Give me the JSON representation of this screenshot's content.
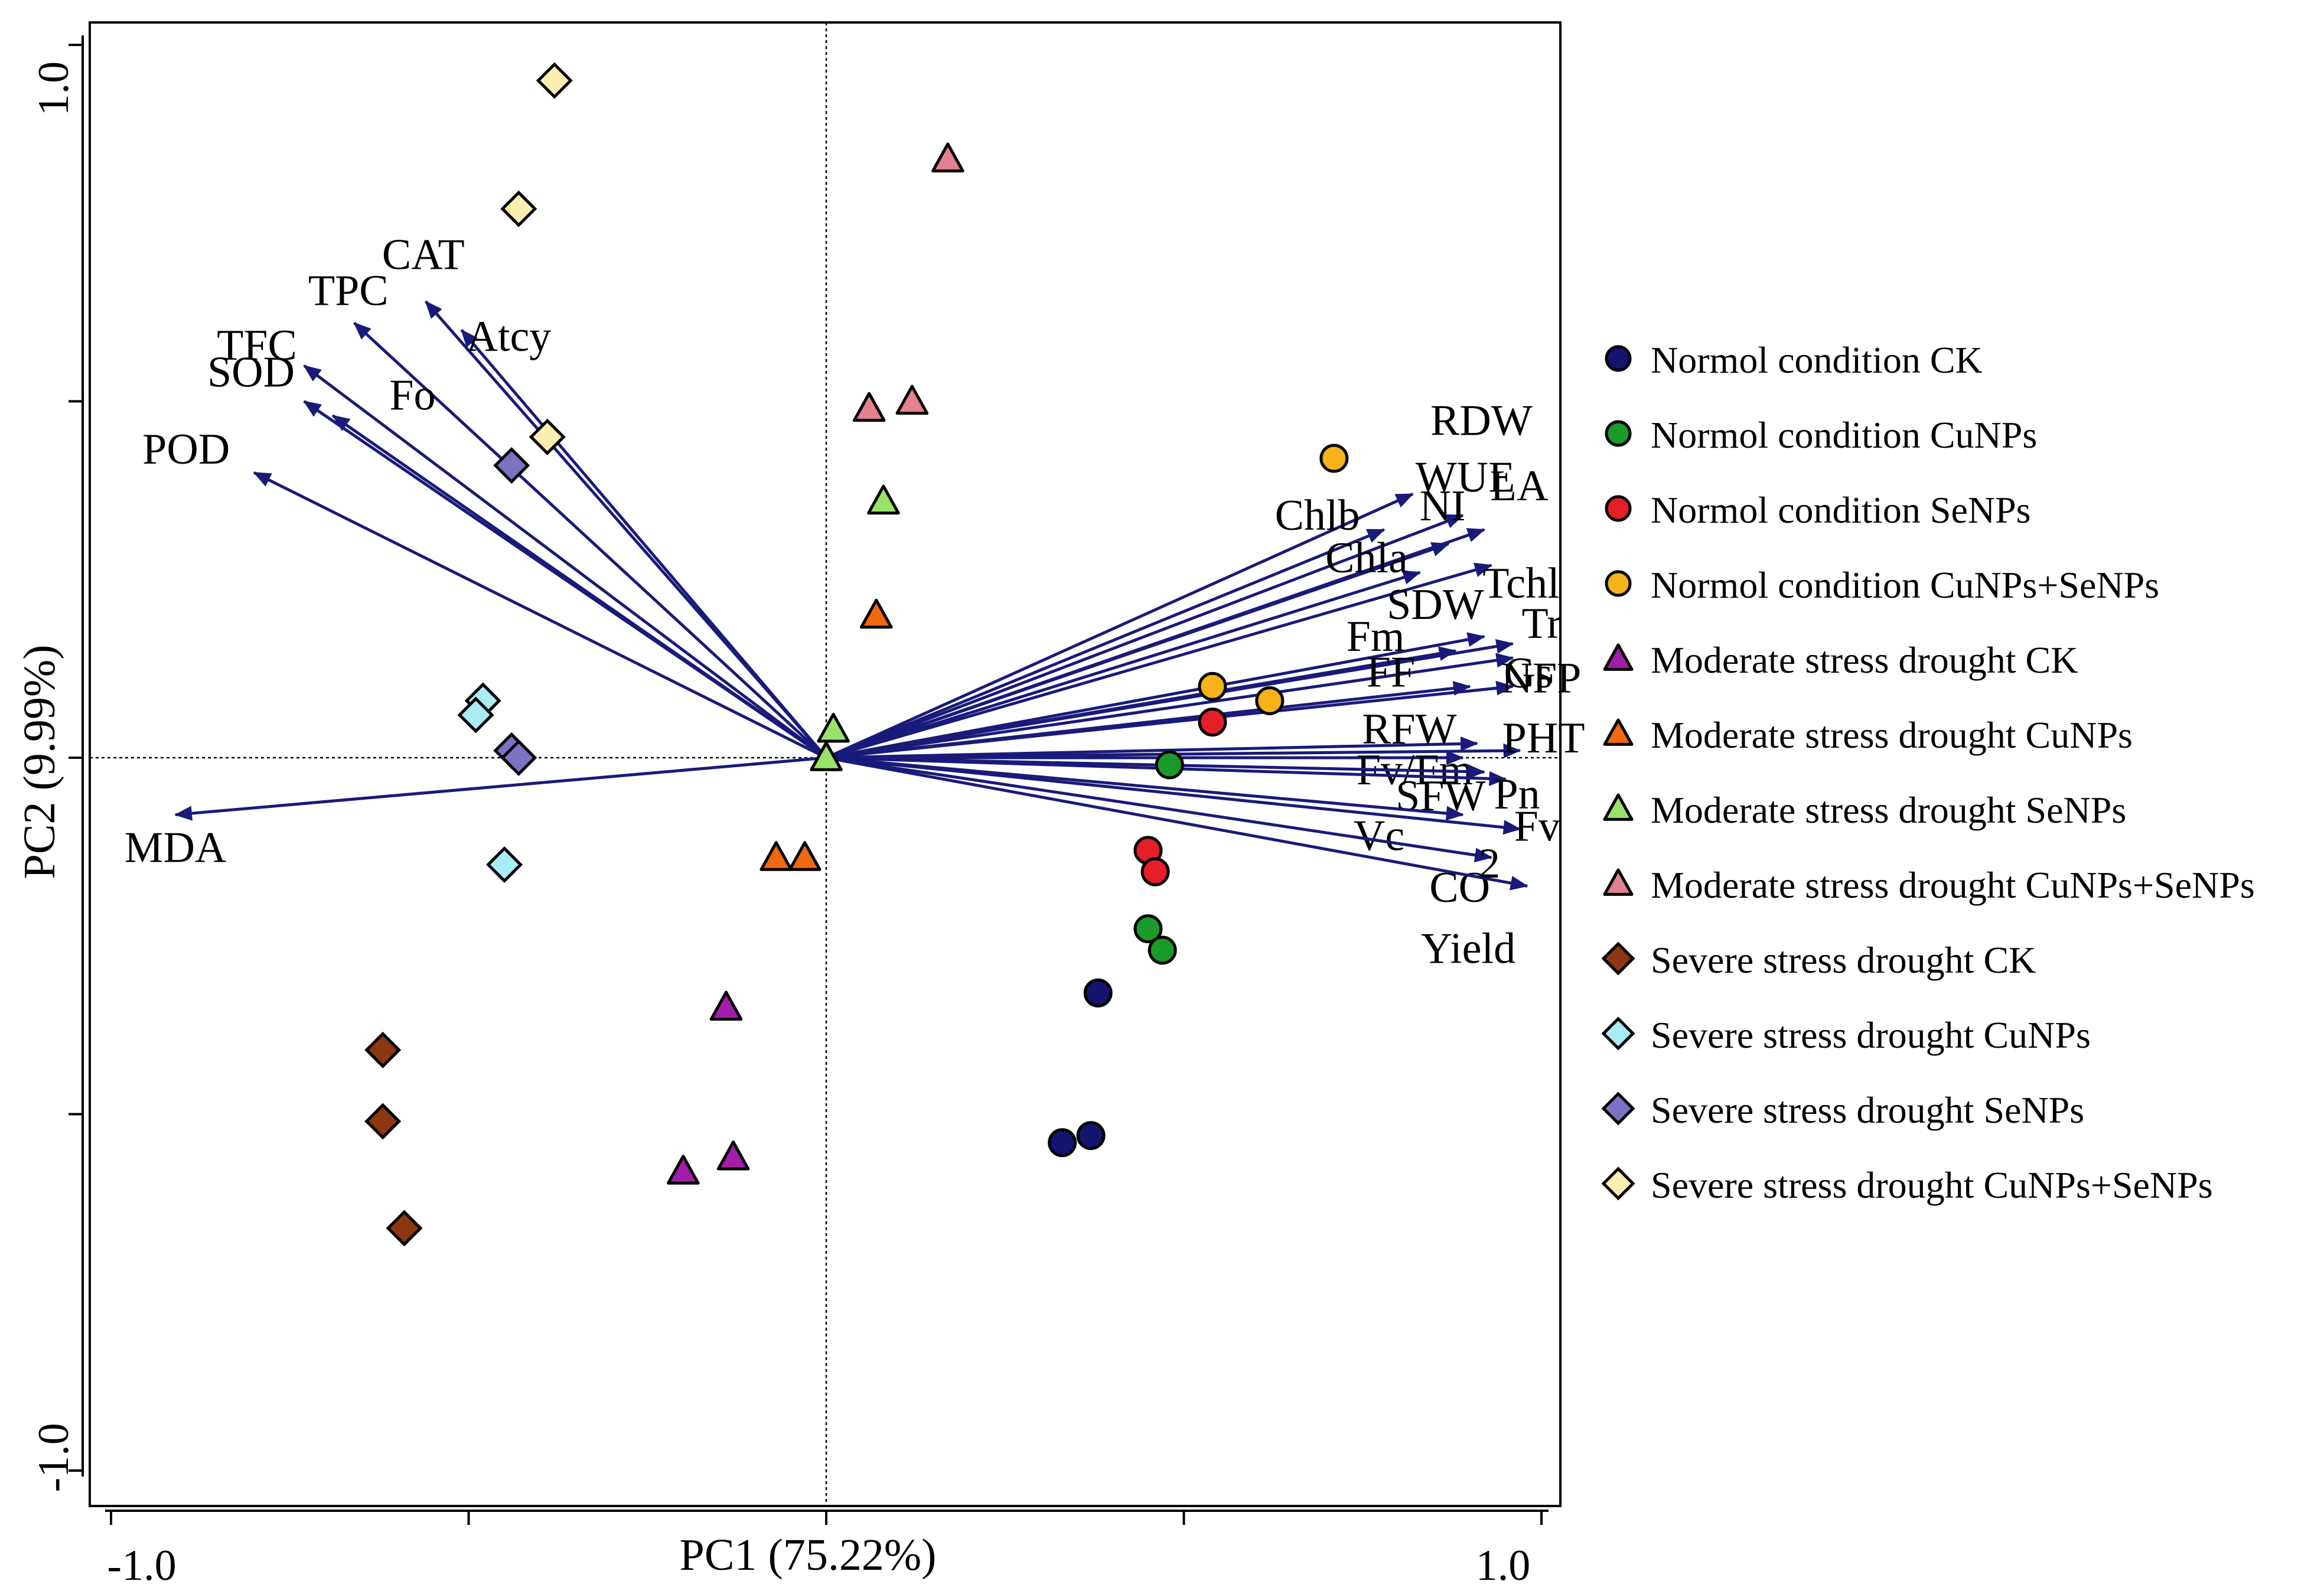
{
  "chart_data": {
    "type": "scatter",
    "title": "",
    "xlabel": "PC1 (75.22%)",
    "ylabel": "PC2 (9.99%)",
    "xlim": [
      -1.0,
      1.0
    ],
    "ylim": [
      -1.0,
      1.0
    ],
    "xticks": [
      "-1.0",
      "1.0"
    ],
    "yticks": [
      "1.0",
      "-1.0"
    ],
    "legend_position": "right",
    "colors": {
      "arrow": "#1a1a7a",
      "navy": "#14146e",
      "green": "#1a9a2a",
      "red": "#e51f2a",
      "orange": "#f5b21a",
      "purple": "#a11ea8",
      "darkorange": "#f06810",
      "lightgreen": "#99e26a",
      "pink": "#e3828e",
      "brown": "#8a3712",
      "cyan": "#a9ecf3",
      "lavender": "#7a73c2",
      "cream": "#fbeeb1"
    },
    "loadings": [
      {
        "name": "CAT",
        "x": -0.56,
        "y": 0.64
      },
      {
        "name": "TPC",
        "x": -0.66,
        "y": 0.61
      },
      {
        "name": "Atcy",
        "x": -0.51,
        "y": 0.6
      },
      {
        "name": "TFC",
        "x": -0.73,
        "y": 0.55
      },
      {
        "name": "SOD",
        "x": -0.73,
        "y": 0.5
      },
      {
        "name": "POD",
        "x": -0.8,
        "y": 0.4
      },
      {
        "name": "Fo",
        "x": -0.69,
        "y": 0.48
      },
      {
        "name": "MDA",
        "x": -0.91,
        "y": -0.08
      },
      {
        "name": "RDW",
        "x": 0.82,
        "y": 0.37
      },
      {
        "name": "WUE",
        "x": 0.89,
        "y": 0.34
      },
      {
        "name": "LA",
        "x": 0.92,
        "y": 0.32
      },
      {
        "name": "NI",
        "x": 0.87,
        "y": 0.3
      },
      {
        "name": "Chlb",
        "x": 0.78,
        "y": 0.32
      },
      {
        "name": "Chla",
        "x": 0.83,
        "y": 0.26
      },
      {
        "name": "Tchl",
        "x": 0.93,
        "y": 0.27
      },
      {
        "name": "SDW",
        "x": 0.92,
        "y": 0.17
      },
      {
        "name": "Tr",
        "x": 0.96,
        "y": 0.16
      },
      {
        "name": "Fm",
        "x": 0.88,
        "y": 0.15
      },
      {
        "name": "Gs",
        "x": 0.96,
        "y": 0.14
      },
      {
        "name": "FF",
        "x": 0.9,
        "y": 0.1
      },
      {
        "name": "NFP",
        "x": 0.96,
        "y": 0.1
      },
      {
        "name": "RFW",
        "x": 0.91,
        "y": 0.02
      },
      {
        "name": "PHT",
        "x": 0.97,
        "y": 0.01
      },
      {
        "name": "Fv/Fm",
        "x": 0.89,
        "y": 0.0
      },
      {
        "name": "SFW",
        "x": 0.92,
        "y": -0.02
      },
      {
        "name": "Pn",
        "x": 0.95,
        "y": -0.03
      },
      {
        "name": "Vc",
        "x": 0.89,
        "y": -0.08
      },
      {
        "name": "Fv",
        "x": 0.97,
        "y": -0.1
      },
      {
        "name": "CO",
        "x": 0.93,
        "y": -0.14
      },
      {
        "name": "Yield",
        "x": 0.98,
        "y": -0.18
      }
    ],
    "groups": [
      {
        "label": "Normol condition CK",
        "shape": "circle",
        "color": "#14146e",
        "points": [
          [
            0.38,
            -0.33
          ],
          [
            0.37,
            -0.53
          ],
          [
            0.33,
            -0.54
          ]
        ]
      },
      {
        "label": "Normol condition CuNPs",
        "shape": "circle",
        "color": "#1a9a2a",
        "points": [
          [
            0.48,
            -0.01
          ],
          [
            0.45,
            -0.24
          ],
          [
            0.47,
            -0.27
          ]
        ]
      },
      {
        "label": "Normol condition SeNPs",
        "shape": "circle",
        "color": "#e51f2a",
        "points": [
          [
            0.54,
            0.05
          ],
          [
            0.45,
            -0.13
          ],
          [
            0.46,
            -0.16
          ]
        ]
      },
      {
        "label": "Normol condition CuNPs+SeNPs",
        "shape": "circle",
        "color": "#f5b21a",
        "points": [
          [
            0.71,
            0.42
          ],
          [
            0.54,
            0.1
          ],
          [
            0.62,
            0.08
          ]
        ]
      },
      {
        "label": "Moderate stress drought CK",
        "shape": "triangle",
        "color": "#a11ea8",
        "points": [
          [
            -0.14,
            -0.35
          ],
          [
            -0.2,
            -0.58
          ],
          [
            -0.13,
            -0.56
          ]
        ]
      },
      {
        "label": "Moderate stress drought CuNPs",
        "shape": "triangle",
        "color": "#f06810",
        "points": [
          [
            0.07,
            0.2
          ],
          [
            -0.07,
            -0.14
          ],
          [
            -0.03,
            -0.14
          ]
        ]
      },
      {
        "label": "Moderate stress drought SeNPs",
        "shape": "triangle",
        "color": "#99e26a",
        "points": [
          [
            0.08,
            0.36
          ],
          [
            0.01,
            0.04
          ],
          [
            0.0,
            0.0
          ]
        ]
      },
      {
        "label": "Moderate stress drought CuNPs+SeNPs",
        "shape": "triangle",
        "color": "#e3828e",
        "points": [
          [
            0.17,
            0.84
          ],
          [
            0.06,
            0.49
          ],
          [
            0.12,
            0.5
          ]
        ]
      },
      {
        "label": "Severe stress drought CK",
        "shape": "diamond",
        "color": "#8a3712",
        "points": [
          [
            -0.62,
            -0.41
          ],
          [
            -0.62,
            -0.51
          ],
          [
            -0.59,
            -0.66
          ]
        ]
      },
      {
        "label": "Severe stress drought CuNPs",
        "shape": "diamond",
        "color": "#a9ecf3",
        "points": [
          [
            -0.48,
            0.08
          ],
          [
            -0.49,
            0.06
          ],
          [
            -0.45,
            -0.15
          ]
        ]
      },
      {
        "label": "Severe stress drought SeNPs",
        "shape": "diamond",
        "color": "#7a73c2",
        "points": [
          [
            -0.44,
            0.41
          ],
          [
            -0.44,
            0.01
          ],
          [
            -0.43,
            0.0
          ]
        ]
      },
      {
        "label": "Severe stress drought CuNPs+SeNPs",
        "shape": "diamond",
        "color": "#fbeeb1",
        "points": [
          [
            -0.38,
            0.95
          ],
          [
            -0.43,
            0.77
          ],
          [
            -0.39,
            0.45
          ]
        ]
      }
    ]
  }
}
